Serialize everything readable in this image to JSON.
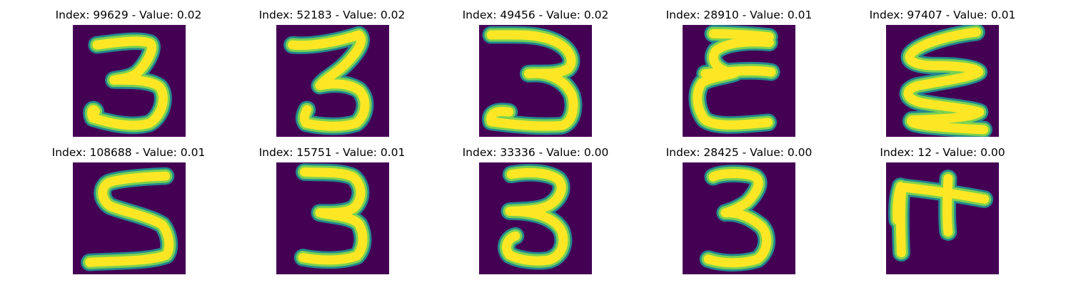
{
  "colors": {
    "background": "#440154",
    "stroke_outer": "#23888e",
    "stroke_mid": "#7ad151",
    "stroke_core": "#fde725",
    "title_text": "#000000"
  },
  "colormap": "viridis",
  "panels": [
    {
      "title": "Index: 99629 - Value: 0.02",
      "index": 99629,
      "value": 0.02,
      "glyph": "3"
    },
    {
      "title": "Index: 52183 - Value: 0.02",
      "index": 52183,
      "value": 0.02,
      "glyph": "3"
    },
    {
      "title": "Index: 49456 - Value: 0.02",
      "index": 49456,
      "value": 0.02,
      "glyph": "3"
    },
    {
      "title": "Index: 28910 - Value: 0.01",
      "index": 28910,
      "value": 0.01,
      "glyph": "ε"
    },
    {
      "title": "Index: 97407 - Value: 0.01",
      "index": 97407,
      "value": 0.01,
      "glyph": "ζ"
    },
    {
      "title": "Index: 108688 - Value: 0.01",
      "index": 108688,
      "value": 0.01,
      "glyph": "5"
    },
    {
      "title": "Index: 15751 - Value: 0.01",
      "index": 15751,
      "value": 0.01,
      "glyph": "3"
    },
    {
      "title": "Index: 33336 - Value: 0.00",
      "index": 33336,
      "value": 0.0,
      "glyph": "3"
    },
    {
      "title": "Index: 28425 - Value: 0.00",
      "index": 28425,
      "value": 0.0,
      "glyph": "3"
    },
    {
      "title": "Index: 12 - Value: 0.00",
      "index": 12,
      "value": 0.0,
      "glyph": "π"
    }
  ]
}
